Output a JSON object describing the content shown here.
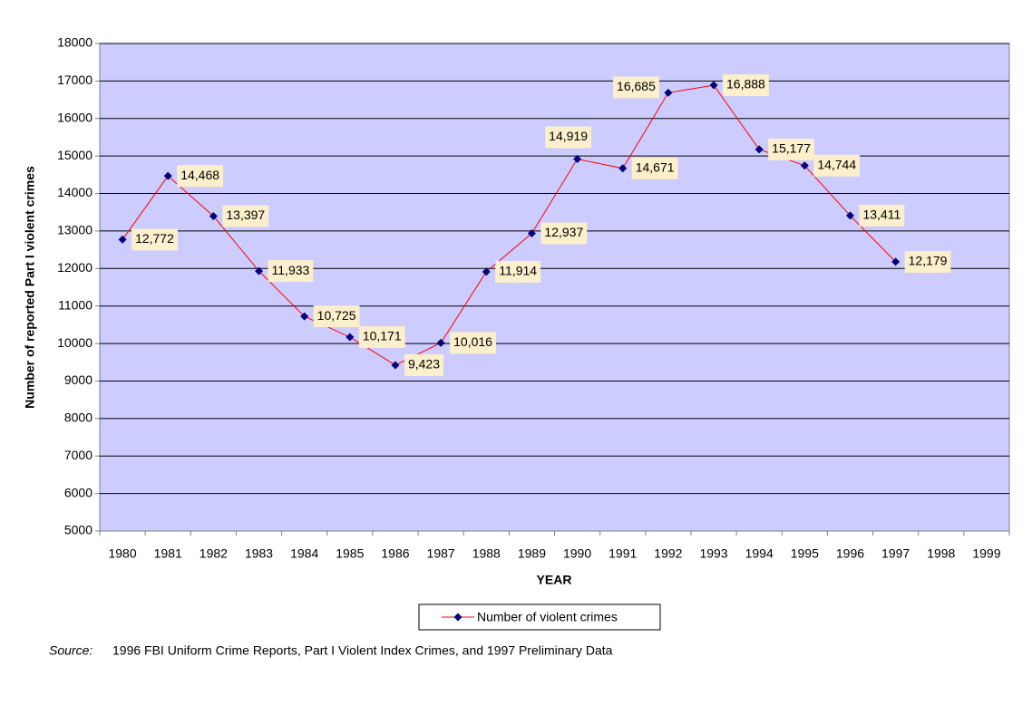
{
  "chart_data": {
    "type": "line",
    "categories": [
      "1980",
      "1981",
      "1982",
      "1983",
      "1984",
      "1985",
      "1986",
      "1987",
      "1988",
      "1989",
      "1990",
      "1991",
      "1992",
      "1993",
      "1994",
      "1995",
      "1996",
      "1997",
      "1998",
      "1999"
    ],
    "series": [
      {
        "name": "Number of violent crimes",
        "color": "#ff0000",
        "marker_color": "#000080",
        "values": [
          12772,
          14468,
          13397,
          11933,
          10725,
          10171,
          9423,
          10016,
          11914,
          12937,
          14919,
          14671,
          16685,
          16888,
          15177,
          14744,
          13411,
          12179,
          null,
          null
        ],
        "value_labels": [
          "12,772",
          "14,468",
          "13,397",
          "11,933",
          "10,725",
          "10,171",
          "9,423",
          "10,016",
          "11,914",
          "12,937",
          "14,919",
          "14,671",
          "16,685",
          "16,888",
          "15,177",
          "14,744",
          "13,411",
          "12,179",
          null,
          null
        ]
      }
    ],
    "ylim": [
      5000,
      18000
    ],
    "yticks": [
      5000,
      6000,
      7000,
      8000,
      9000,
      10000,
      11000,
      12000,
      13000,
      14000,
      15000,
      16000,
      17000,
      18000
    ],
    "xlabel": "YEAR",
    "ylabel": "Number of reported  Part I violent crimes",
    "grid": true,
    "legend": "bottom",
    "source_label": "Source:",
    "source": "1996 FBI Uniform Crime Reports, Part I Violent  Index Crimes, and 1997 Preliminary Data"
  }
}
